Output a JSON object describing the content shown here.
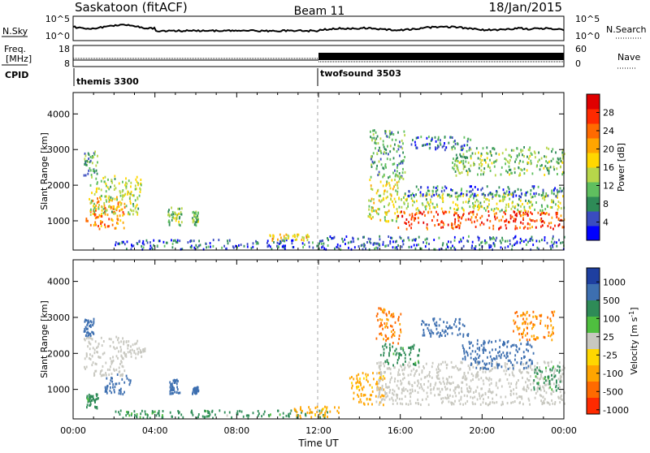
{
  "header": {
    "station": "Saskatoon (fitACF)",
    "beam": "Beam 11",
    "date": "18/Jan/2015"
  },
  "noise_panel": {
    "left_label": "N.Sky",
    "right_label": "N.Search",
    "left_ticks": [
      "10^5",
      "10^0"
    ],
    "right_ticks": [
      "10^5",
      "10^0"
    ]
  },
  "freq_panel": {
    "left_label_1": "Freq.",
    "left_label_2": "[MHz]",
    "right_label": "Nave",
    "left_ticks": [
      "18",
      "8"
    ],
    "right_ticks": [
      "60",
      "0"
    ]
  },
  "cpid_panel": {
    "label": "CPID",
    "modes": [
      {
        "name": "themis 3300",
        "start_hour": 0
      },
      {
        "name": "twofsound 3503",
        "start_hour": 12
      }
    ]
  },
  "chart_data": [
    {
      "type": "heatmap",
      "title": "Power [dB]",
      "ylabel": "Slant Range [km]",
      "xlim": [
        0,
        24
      ],
      "ylim": [
        180,
        4600
      ],
      "yticks": [
        "1000",
        "2000",
        "3000",
        "4000"
      ],
      "colorbar": {
        "label": "Power [dB]",
        "ticks": [
          "4",
          "8",
          "12",
          "16",
          "20",
          "24",
          "28"
        ],
        "colors": [
          "#0000ff",
          "#3a4cc0",
          "#2e8b57",
          "#5fbf5f",
          "#b7d64a",
          "#ffd700",
          "#ffa500",
          "#ff6a00",
          "#ff2a00",
          "#e00000"
        ]
      },
      "scatter_regions": [
        {
          "t": [
            0.6,
            2.5
          ],
          "range": [
            800,
            1700
          ],
          "value": 22
        },
        {
          "t": [
            0.8,
            3.3
          ],
          "range": [
            1200,
            2300
          ],
          "value": 14
        },
        {
          "t": [
            0.5,
            1.2
          ],
          "range": [
            2300,
            3000
          ],
          "value": 10
        },
        {
          "t": [
            4.6,
            5.3
          ],
          "range": [
            900,
            1400
          ],
          "value": 12
        },
        {
          "t": [
            5.8,
            6.1
          ],
          "range": [
            900,
            1300
          ],
          "value": 12
        },
        {
          "t": [
            2,
            12
          ],
          "range": [
            200,
            500
          ],
          "value": 6
        },
        {
          "t": [
            9.5,
            11.5
          ],
          "range": [
            480,
            650
          ],
          "value": 18
        },
        {
          "t": [
            14.4,
            16
          ],
          "range": [
            1000,
            2200
          ],
          "value": 16
        },
        {
          "t": [
            15.8,
            24
          ],
          "range": [
            800,
            1300
          ],
          "value": 26
        },
        {
          "t": [
            16,
            24
          ],
          "range": [
            1300,
            1800
          ],
          "value": 14
        },
        {
          "t": [
            16,
            24
          ],
          "range": [
            1700,
            2000
          ],
          "value": 6
        },
        {
          "t": [
            12,
            24
          ],
          "range": [
            200,
            600
          ],
          "value": 6
        },
        {
          "t": [
            14.5,
            16.2
          ],
          "range": [
            2200,
            3600
          ],
          "value": 10
        },
        {
          "t": [
            18.5,
            24
          ],
          "range": [
            2300,
            3100
          ],
          "value": 12
        },
        {
          "t": [
            16.5,
            19.5
          ],
          "range": [
            3000,
            3400
          ],
          "value": 6
        }
      ]
    },
    {
      "type": "heatmap",
      "title": "Velocity [m s^-1]",
      "ylabel": "Slant Range [km]",
      "xlabel": "Time UT",
      "xlim": [
        0,
        24
      ],
      "ylim": [
        180,
        4600
      ],
      "xticks": [
        "00:00",
        "04:00",
        "08:00",
        "12:00",
        "16:00",
        "20:00",
        "00:00"
      ],
      "yticks": [
        "1000",
        "2000",
        "3000",
        "4000"
      ],
      "colorbar": {
        "label": "Velocity [m s^-1]",
        "ticks": [
          "1000",
          "500",
          "100",
          "25",
          "-25",
          "-100",
          "-500",
          "-1000"
        ],
        "colors": [
          "#1e3fa0",
          "#3d6fb0",
          "#2e8b57",
          "#4fbf3f",
          "#c8c8c0",
          "#ffd700",
          "#ffa500",
          "#ff6a00",
          "#ff2a00"
        ]
      },
      "scatter_regions": [
        {
          "t": [
            0.5,
            2.5
          ],
          "range": [
            1400,
            2500
          ],
          "value": 0
        },
        {
          "t": [
            2.4,
            3.5
          ],
          "range": [
            1900,
            2400
          ],
          "value": 0
        },
        {
          "t": [
            0.6,
            1.2
          ],
          "range": [
            500,
            900
          ],
          "value": 150
        },
        {
          "t": [
            1.5,
            2.8
          ],
          "range": [
            900,
            1500
          ],
          "value": 400
        },
        {
          "t": [
            0.5,
            1.0
          ],
          "range": [
            2500,
            3000
          ],
          "value": 400
        },
        {
          "t": [
            4.7,
            5.2
          ],
          "range": [
            900,
            1300
          ],
          "value": 400
        },
        {
          "t": [
            5.8,
            6.1
          ],
          "range": [
            900,
            1100
          ],
          "value": 400
        },
        {
          "t": [
            2,
            12.5
          ],
          "range": [
            200,
            450
          ],
          "value": 120
        },
        {
          "t": [
            10.5,
            13
          ],
          "range": [
            200,
            550
          ],
          "value": -80
        },
        {
          "t": [
            13.5,
            15.2
          ],
          "range": [
            600,
            1500
          ],
          "value": -80
        },
        {
          "t": [
            14.8,
            24
          ],
          "range": [
            600,
            1800
          ],
          "value": 0
        },
        {
          "t": [
            15,
            17
          ],
          "range": [
            1700,
            2300
          ],
          "value": 80
        },
        {
          "t": [
            14.8,
            16
          ],
          "range": [
            2300,
            3300
          ],
          "value": -300
        },
        {
          "t": [
            17,
            19.5
          ],
          "range": [
            2500,
            3000
          ],
          "value": 400
        },
        {
          "t": [
            19,
            22.5
          ],
          "range": [
            1600,
            2400
          ],
          "value": 400
        },
        {
          "t": [
            21.5,
            23.5
          ],
          "range": [
            2400,
            3200
          ],
          "value": -300
        },
        {
          "t": [
            22.5,
            23.8
          ],
          "range": [
            1000,
            1700
          ],
          "value": 120
        }
      ]
    }
  ]
}
